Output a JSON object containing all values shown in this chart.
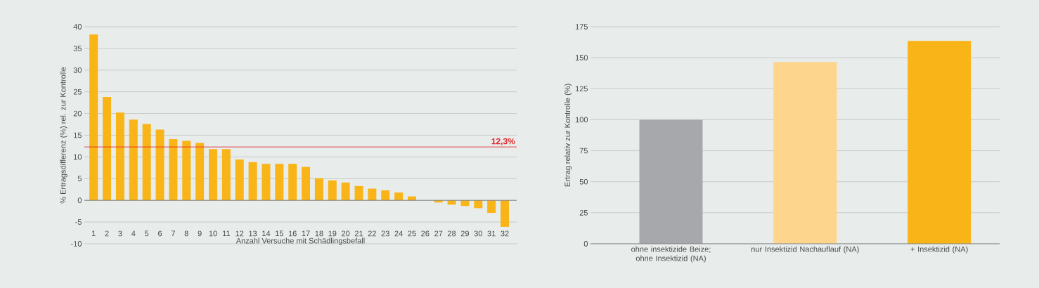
{
  "chart_data": [
    {
      "type": "bar",
      "xlabel": "Anzahl Versuche mit Schädlingsbefall",
      "ylabel": "% Ertragsdifferenz (%) rel. zur Kontrolle",
      "categories": [
        "1",
        "2",
        "3",
        "4",
        "5",
        "6",
        "7",
        "8",
        "9",
        "10",
        "11",
        "12",
        "13",
        "14",
        "15",
        "16",
        "17",
        "18",
        "19",
        "20",
        "21",
        "22",
        "23",
        "24",
        "25",
        "26",
        "27",
        "28",
        "29",
        "30",
        "31",
        "32"
      ],
      "series": [
        {
          "color": "#f9b418",
          "values": [
            38.2,
            23.8,
            20.2,
            18.6,
            17.6,
            16.3,
            14.1,
            13.7,
            13.2,
            11.8,
            11.8,
            9.4,
            8.8,
            8.4,
            8.4,
            8.4,
            7.7,
            5.1,
            4.6,
            4.1,
            3.3,
            2.7,
            2.3,
            1.8,
            0.9,
            0,
            -0.5,
            -1.0,
            -1.3,
            -1.8,
            -2.9,
            -6.1
          ]
        }
      ],
      "ylim": [
        -10,
        40
      ],
      "yticks": [
        -10,
        -5,
        0,
        5,
        10,
        15,
        20,
        25,
        30,
        35,
        40
      ],
      "grid": "y",
      "ref_lines": [
        {
          "axis": "y",
          "value": 12.3,
          "label": "12,3%",
          "color": "#e0242b"
        }
      ]
    },
    {
      "type": "bar",
      "ylabel": "Ertrag relativ zur Kontrolle (%)",
      "categories": [
        "ohne insektizide Beize; ohne Insektizid (NA)",
        "nur Insektizid Nachauflauf (NA)",
        "+ Insektizid (NA)"
      ],
      "values": [
        100,
        146.5,
        163.5
      ],
      "colors": [
        "#a7a8ab",
        "#fdd58c",
        "#f9b418"
      ],
      "ylim": [
        0,
        175
      ],
      "yticks": [
        0,
        25,
        50,
        75,
        100,
        125,
        150,
        175
      ],
      "grid": "y"
    }
  ]
}
